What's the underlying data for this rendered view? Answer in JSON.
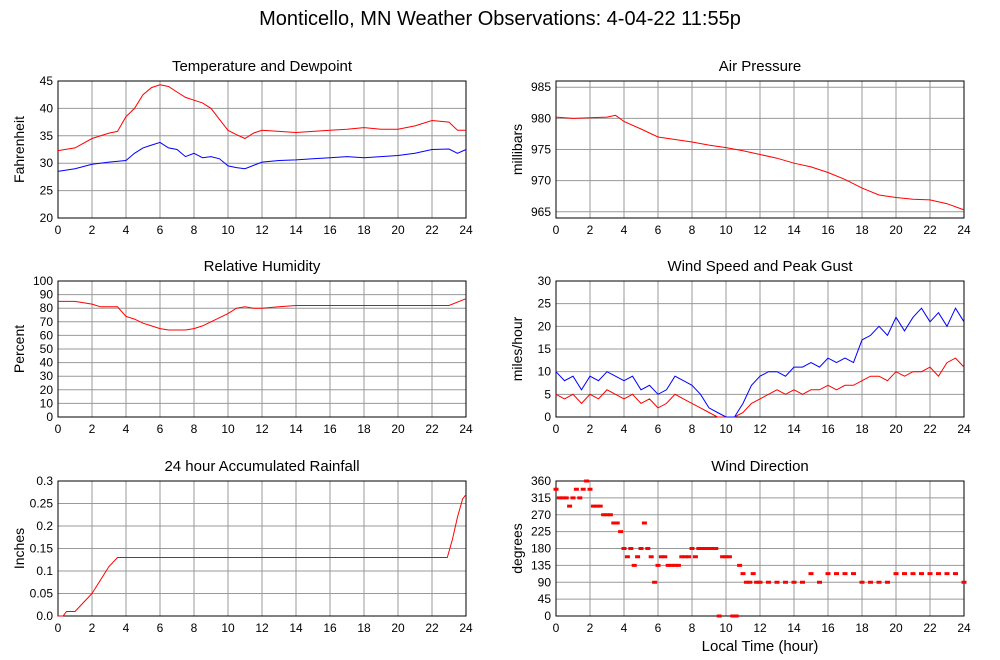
{
  "page_title": "Monticello, MN Weather Observations: 4-04-22 11:55p",
  "colors": {
    "red": "#ff0000",
    "blue": "#0000ff",
    "grid": "#999999",
    "axis": "#000000"
  },
  "chart_data": [
    {
      "type": "line",
      "title": "Temperature and Dewpoint",
      "xlabel": "",
      "ylabel": "Fahrenheit",
      "xlim": [
        0,
        24
      ],
      "ylim": [
        20,
        45
      ],
      "xticks": [
        0,
        2,
        4,
        6,
        8,
        10,
        12,
        14,
        16,
        18,
        20,
        22,
        24
      ],
      "yticks": [
        20,
        25,
        30,
        35,
        40,
        45
      ],
      "grid": true,
      "series": [
        {
          "color": "#ff0000",
          "x": [
            0,
            1,
            2,
            3,
            3.5,
            4,
            4.5,
            5,
            5.5,
            6,
            6.5,
            7,
            7.5,
            8,
            8.5,
            9,
            9.5,
            10,
            10.5,
            11,
            11.5,
            12,
            13,
            14,
            15,
            16,
            17,
            18,
            19,
            20,
            21,
            22,
            23,
            23.5,
            24
          ],
          "y": [
            32.3,
            32.8,
            34.5,
            35.5,
            35.8,
            38.5,
            40,
            42.5,
            43.8,
            44.3,
            44,
            43,
            42,
            41.5,
            41,
            40,
            38,
            36,
            35.2,
            34.5,
            35.5,
            36,
            35.8,
            35.6,
            35.8,
            36,
            36.2,
            36.5,
            36.2,
            36.2,
            36.8,
            37.8,
            37.5,
            36,
            36
          ]
        },
        {
          "color": "#0000ff",
          "x": [
            0,
            1,
            2,
            3,
            4,
            4.5,
            5,
            5.5,
            6,
            6.5,
            7,
            7.5,
            8,
            8.5,
            9,
            9.5,
            10,
            10.5,
            11,
            12,
            13,
            14,
            15,
            16,
            17,
            18,
            19,
            20,
            21,
            22,
            23,
            23.5,
            24
          ],
          "y": [
            28.5,
            29,
            29.8,
            30.2,
            30.5,
            31.8,
            32.8,
            33.3,
            33.8,
            32.8,
            32.5,
            31.2,
            31.8,
            31,
            31.2,
            30.8,
            29.5,
            29.2,
            29,
            30.2,
            30.5,
            30.6,
            30.8,
            31,
            31.2,
            31,
            31.2,
            31.4,
            31.8,
            32.5,
            32.6,
            31.8,
            32.5
          ]
        }
      ]
    },
    {
      "type": "line",
      "title": "Air Pressure",
      "xlabel": "",
      "ylabel": "millibars",
      "xlim": [
        0,
        24
      ],
      "ylim": [
        964,
        986
      ],
      "xticks": [
        0,
        2,
        4,
        6,
        8,
        10,
        12,
        14,
        16,
        18,
        20,
        22,
        24
      ],
      "yticks": [
        965,
        970,
        975,
        980,
        985
      ],
      "grid": true,
      "series": [
        {
          "color": "#ff0000",
          "x": [
            0,
            1,
            2,
            3,
            3.5,
            4,
            5,
            6,
            7,
            8,
            9,
            10,
            11,
            12,
            13,
            14,
            15,
            16,
            17,
            18,
            19,
            20,
            21,
            22,
            23,
            24
          ],
          "y": [
            980.2,
            980,
            980.1,
            980.2,
            980.5,
            979.5,
            978.3,
            977,
            976.6,
            976.2,
            975.7,
            975.3,
            974.8,
            974.2,
            973.6,
            972.8,
            972.2,
            971.3,
            970.2,
            968.8,
            967.7,
            967.3,
            967,
            966.9,
            966.3,
            965.3
          ]
        }
      ]
    },
    {
      "type": "line",
      "title": "Relative Humidity",
      "xlabel": "",
      "ylabel": "Percent",
      "xlim": [
        0,
        24
      ],
      "ylim": [
        0,
        100
      ],
      "xticks": [
        0,
        2,
        4,
        6,
        8,
        10,
        12,
        14,
        16,
        18,
        20,
        22,
        24
      ],
      "yticks": [
        0,
        10,
        20,
        30,
        40,
        50,
        60,
        70,
        80,
        90,
        100
      ],
      "grid": true,
      "series": [
        {
          "color": "#ff0000",
          "x": [
            0,
            1,
            2,
            2.5,
            3,
            3.5,
            4,
            4.5,
            5,
            5.5,
            6,
            6.5,
            7,
            7.5,
            8,
            8.5,
            9,
            9.5,
            10,
            10.5,
            11,
            11.5,
            12,
            13,
            14,
            15,
            16,
            17,
            18,
            19,
            20,
            21,
            22,
            23,
            24
          ],
          "y": [
            85,
            85,
            83,
            81,
            81,
            81,
            74,
            72,
            69,
            67,
            65,
            64,
            64,
            64,
            65,
            67,
            70,
            73,
            76,
            80,
            81,
            80,
            80,
            81,
            82,
            82,
            82,
            82,
            82,
            82,
            82,
            82,
            82,
            82,
            87
          ]
        }
      ]
    },
    {
      "type": "line",
      "title": "Wind Speed and Peak Gust",
      "xlabel": "",
      "ylabel": "miles/hour",
      "xlim": [
        0,
        24
      ],
      "ylim": [
        0,
        30
      ],
      "xticks": [
        0,
        2,
        4,
        6,
        8,
        10,
        12,
        14,
        16,
        18,
        20,
        22,
        24
      ],
      "yticks": [
        0,
        5,
        10,
        15,
        20,
        25,
        30
      ],
      "grid": true,
      "series": [
        {
          "color": "#ff0000",
          "x": [
            0,
            0.5,
            1,
            1.5,
            2,
            2.5,
            3,
            3.5,
            4,
            4.5,
            5,
            5.5,
            6,
            6.5,
            7,
            7.5,
            8,
            8.5,
            9,
            9.5,
            10,
            10.5,
            11,
            11.5,
            12,
            12.5,
            13,
            13.5,
            14,
            14.5,
            15,
            15.5,
            16,
            16.5,
            17,
            17.5,
            18,
            18.5,
            19,
            19.5,
            20,
            20.5,
            21,
            21.5,
            22,
            22.5,
            23,
            23.5,
            24
          ],
          "y": [
            5,
            4,
            5,
            3,
            5,
            4,
            6,
            5,
            4,
            5,
            3,
            4,
            2,
            3,
            5,
            4,
            3,
            2,
            1,
            0,
            0,
            0,
            1,
            3,
            4,
            5,
            6,
            5,
            6,
            5,
            6,
            6,
            7,
            6,
            7,
            7,
            8,
            9,
            9,
            8,
            10,
            9,
            10,
            10,
            11,
            9,
            12,
            13,
            11
          ]
        },
        {
          "color": "#0000ff",
          "x": [
            0,
            0.5,
            1,
            1.5,
            2,
            2.5,
            3,
            3.5,
            4,
            4.5,
            5,
            5.5,
            6,
            6.5,
            7,
            7.5,
            8,
            8.5,
            9,
            9.5,
            10,
            10.5,
            11,
            11.5,
            12,
            12.5,
            13,
            13.5,
            14,
            14.5,
            15,
            15.5,
            16,
            16.5,
            17,
            17.5,
            18,
            18.5,
            19,
            19.5,
            20,
            20.5,
            21,
            21.5,
            22,
            22.5,
            23,
            23.5,
            24
          ],
          "y": [
            10,
            8,
            9,
            6,
            9,
            8,
            10,
            9,
            8,
            9,
            6,
            7,
            5,
            6,
            9,
            8,
            7,
            5,
            2,
            1,
            0,
            0,
            3,
            7,
            9,
            10,
            10,
            9,
            11,
            11,
            12,
            11,
            13,
            12,
            13,
            12,
            17,
            18,
            20,
            18,
            22,
            19,
            22,
            24,
            21,
            23,
            20,
            24,
            21
          ]
        }
      ]
    },
    {
      "type": "line",
      "title": "24 hour Accumulated Rainfall",
      "xlabel": "",
      "ylabel": "Inches",
      "xlim": [
        0,
        24
      ],
      "ylim": [
        0,
        0.3
      ],
      "xticks": [
        0,
        2,
        4,
        6,
        8,
        10,
        12,
        14,
        16,
        18,
        20,
        22,
        24
      ],
      "yticks": [
        0,
        0.05,
        0.1,
        0.15,
        0.2,
        0.25,
        0.3
      ],
      "yticklabels": [
        "0.0",
        "0.05",
        "0.1",
        "0.15",
        "0.2",
        "0.25",
        "0.3"
      ],
      "grid": true,
      "series": [
        {
          "color": "#ff0000",
          "x": [
            0,
            0.3,
            0.5,
            1,
            1.5,
            2,
            2.5,
            3,
            3.5,
            4,
            10,
            15,
            20,
            22.9,
            23.2,
            23.5,
            23.8,
            24
          ],
          "y": [
            0,
            0,
            0.01,
            0.01,
            0.03,
            0.05,
            0.08,
            0.11,
            0.13,
            0.13,
            0.13,
            0.13,
            0.13,
            0.13,
            0.17,
            0.22,
            0.26,
            0.27
          ]
        }
      ]
    },
    {
      "type": "scatter",
      "title": "Wind Direction",
      "xlabel": "Local Time (hour)",
      "ylabel": "degrees",
      "xlim": [
        0,
        24
      ],
      "ylim": [
        0,
        360
      ],
      "xticks": [
        0,
        2,
        4,
        6,
        8,
        10,
        12,
        14,
        16,
        18,
        20,
        22,
        24
      ],
      "yticks": [
        0,
        45,
        90,
        135,
        180,
        225,
        270,
        315,
        360
      ],
      "grid": true,
      "series": [
        {
          "color": "#ff0000",
          "x": [
            0,
            0.2,
            0.4,
            0.6,
            0.8,
            1,
            1.2,
            1.4,
            1.6,
            1.8,
            2,
            2.2,
            2.4,
            2.6,
            2.8,
            3,
            3.2,
            3.4,
            3.6,
            3.8,
            4,
            4.2,
            4.4,
            4.6,
            4.8,
            5,
            5.2,
            5.4,
            5.6,
            5.8,
            6,
            6.2,
            6.4,
            6.6,
            6.8,
            7,
            7.2,
            7.4,
            7.6,
            7.8,
            8,
            8.2,
            8.4,
            8.6,
            8.8,
            9,
            9.2,
            9.4,
            9.6,
            9.8,
            10,
            10.2,
            10.4,
            10.6,
            10.8,
            11,
            11.2,
            11.4,
            11.6,
            11.8,
            12,
            12.5,
            13,
            13.5,
            14,
            14.5,
            15,
            15.5,
            16,
            16.5,
            17,
            17.5,
            18,
            18.5,
            19,
            19.5,
            20,
            20.5,
            21,
            21.5,
            22,
            22.5,
            23,
            23.5,
            24
          ],
          "y": [
            338,
            315,
            315,
            315,
            293,
            315,
            338,
            315,
            338,
            360,
            338,
            293,
            293,
            293,
            270,
            270,
            270,
            248,
            248,
            225,
            180,
            158,
            180,
            135,
            158,
            180,
            248,
            180,
            158,
            90,
            135,
            158,
            158,
            135,
            135,
            135,
            135,
            158,
            158,
            158,
            180,
            158,
            180,
            180,
            180,
            180,
            180,
            180,
            0,
            158,
            158,
            158,
            0,
            0,
            135,
            113,
            90,
            90,
            113,
            90,
            90,
            90,
            90,
            90,
            90,
            90,
            113,
            90,
            113,
            113,
            113,
            113,
            90,
            90,
            90,
            90,
            113,
            113,
            113,
            113,
            113,
            113,
            113,
            113,
            90
          ]
        }
      ]
    }
  ]
}
